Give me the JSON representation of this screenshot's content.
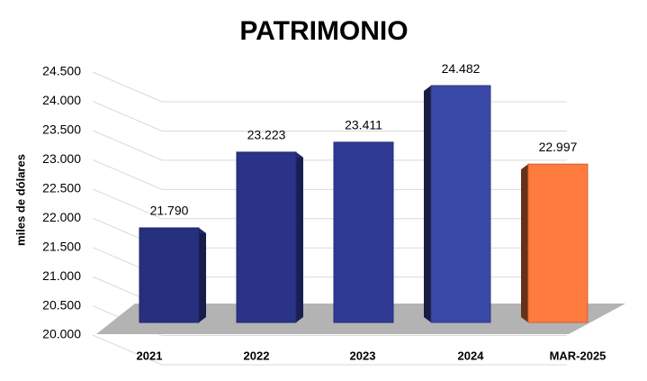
{
  "chart_data": {
    "type": "bar3d",
    "title": "PATRIMONIO",
    "y_label": "miles de dólares",
    "categories": [
      "2021",
      "2022",
      "2023",
      "2024",
      "MAR-2025"
    ],
    "values": [
      21790,
      23223,
      23411,
      24482,
      22997
    ],
    "value_labels": [
      "21.790",
      "23.223",
      "23.411",
      "24.482",
      "22.997"
    ],
    "colors": [
      "#27307f",
      "#2a3388",
      "#2e3a94",
      "#3a48a8",
      "#ff7a3d"
    ],
    "ylim": [
      20000,
      24500
    ],
    "yticks": [
      {
        "value": 20000,
        "label": "20.000"
      },
      {
        "value": 20500,
        "label": "20.500"
      },
      {
        "value": 21000,
        "label": "21.000"
      },
      {
        "value": 21500,
        "label": "21.500"
      },
      {
        "value": 22000,
        "label": "22.000"
      },
      {
        "value": 22500,
        "label": "22.500"
      },
      {
        "value": 23000,
        "label": "23.000"
      },
      {
        "value": 23500,
        "label": "23.500"
      },
      {
        "value": 24000,
        "label": "24.000"
      },
      {
        "value": 24500,
        "label": "24.500"
      }
    ],
    "grid": true
  }
}
